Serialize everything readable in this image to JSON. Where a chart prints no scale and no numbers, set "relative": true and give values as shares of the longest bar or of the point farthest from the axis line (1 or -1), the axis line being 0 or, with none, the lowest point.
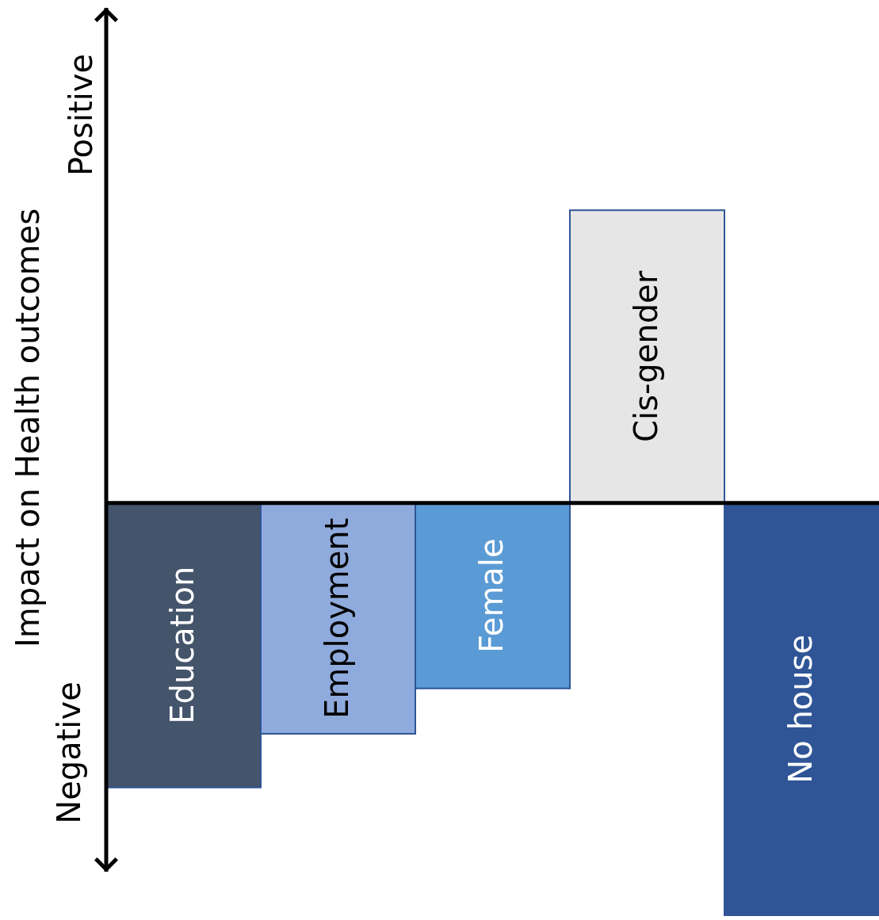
{
  "chart_data": {
    "type": "bar",
    "relative": true,
    "ylabel": "Impact on Health outcomes",
    "annotations": [
      "Positive",
      "Negative"
    ],
    "categories": [
      "Education",
      "Employment",
      "Female",
      "Cis-gender",
      "No house"
    ],
    "values": [
      -0.69,
      -0.56,
      -0.45,
      0.71,
      -1
    ],
    "colors": [
      "#44546a",
      "#8faadc",
      "#5b9bd5",
      "#e7e6e6",
      "#2f5597"
    ]
  }
}
